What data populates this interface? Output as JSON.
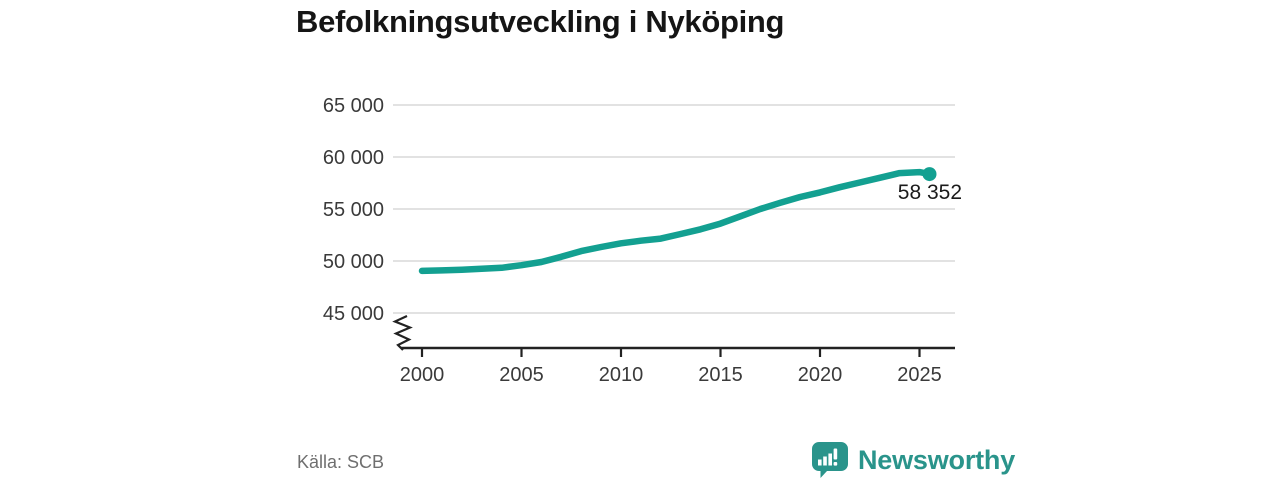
{
  "title": "Befolkningsutveckling i Nyköping",
  "source": "Källa: SCB",
  "brand": {
    "name": "Newsworthy",
    "color": "#2a948b",
    "icon": "bar-chart-speech-bubble-icon"
  },
  "colors": {
    "line": "#13a091",
    "grid": "#d9d9d9",
    "axis": "#222222",
    "tick_text": "#3a3a3a",
    "muted_text": "#6f6f6f",
    "title_text": "#151515"
  },
  "chart_data": {
    "type": "line",
    "title": "Befolkningsutveckling i Nyköping",
    "xlabel": "",
    "ylabel": "",
    "grid": "horizontal",
    "axis_break": true,
    "ylim": [
      45000,
      65000
    ],
    "xlim": [
      2000,
      2026.5
    ],
    "y_ticks": [
      65000,
      60000,
      55000,
      50000,
      45000
    ],
    "y_tick_labels": [
      "65 000",
      "60 000",
      "55 000",
      "50 000",
      "45 000"
    ],
    "x_ticks": [
      2000,
      2005,
      2010,
      2015,
      2020,
      2025
    ],
    "x_tick_labels": [
      "2000",
      "2005",
      "2010",
      "2015",
      "2020",
      "2025"
    ],
    "end_label": "58 352",
    "end_value": 58352,
    "series": [
      {
        "name": "Befolkning i Nyköping",
        "x": [
          2000,
          2001,
          2002,
          2003,
          2004,
          2005,
          2006,
          2007,
          2008,
          2009,
          2010,
          2011,
          2012,
          2013,
          2014,
          2015,
          2016,
          2017,
          2018,
          2019,
          2020,
          2021,
          2022,
          2023,
          2024,
          2025,
          2025.5
        ],
        "y": [
          49050,
          49100,
          49150,
          49250,
          49350,
          49600,
          49900,
          50400,
          50950,
          51350,
          51700,
          51950,
          52150,
          52600,
          53050,
          53600,
          54300,
          55000,
          55600,
          56150,
          56600,
          57100,
          57550,
          58000,
          58450,
          58550,
          58352
        ]
      }
    ]
  }
}
